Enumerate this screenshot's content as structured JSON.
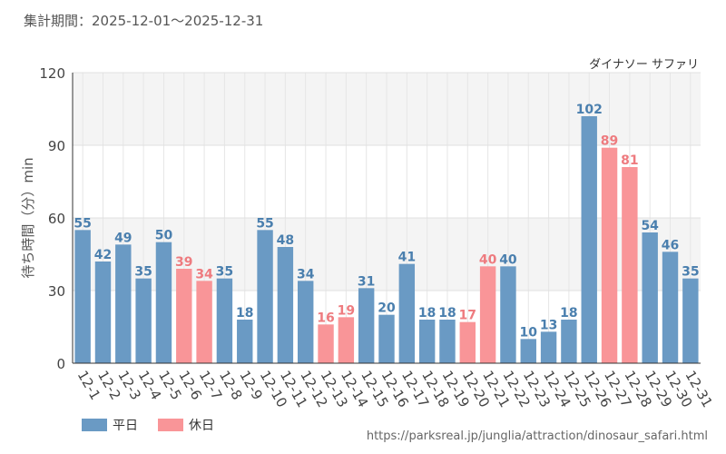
{
  "header": {
    "period": "集計期間：2025-12-01～2025-12-31"
  },
  "chart_data": {
    "type": "bar",
    "subtitle": "ダイナソー サファリ",
    "ylabel": "待ち時間（分）min",
    "ylim": [
      0,
      120
    ],
    "yticks": [
      0,
      30,
      60,
      90,
      120
    ],
    "categories": [
      "12-1",
      "12-2",
      "12-3",
      "12-4",
      "12-5",
      "12-6",
      "12-7",
      "12-8",
      "12-9",
      "12-10",
      "12-11",
      "12-12",
      "12-13",
      "12-14",
      "12-15",
      "12-16",
      "12-17",
      "12-18",
      "12-19",
      "12-20",
      "12-21",
      "12-22",
      "12-23",
      "12-24",
      "12-25",
      "12-26",
      "12-27",
      "12-28",
      "12-29",
      "12-30",
      "12-31"
    ],
    "values": [
      55,
      42,
      49,
      35,
      50,
      39,
      34,
      35,
      18,
      55,
      48,
      34,
      16,
      19,
      31,
      20,
      41,
      18,
      18,
      17,
      40,
      40,
      10,
      13,
      18,
      102,
      89,
      81,
      54,
      46,
      35
    ],
    "day_type": [
      "weekday",
      "weekday",
      "weekday",
      "weekday",
      "weekday",
      "holiday",
      "holiday",
      "weekday",
      "weekday",
      "weekday",
      "weekday",
      "weekday",
      "holiday",
      "holiday",
      "weekday",
      "weekday",
      "weekday",
      "weekday",
      "weekday",
      "holiday",
      "holiday",
      "weekday",
      "weekday",
      "weekday",
      "weekday",
      "weekday",
      "holiday",
      "holiday",
      "weekday",
      "weekday",
      "weekday"
    ],
    "legend": [
      {
        "key": "weekday",
        "label": "平日",
        "color": "#6a9ac4"
      },
      {
        "key": "holiday",
        "label": "休日",
        "color": "#f99598"
      }
    ],
    "label_colors": {
      "weekday": "#4a7fae",
      "holiday": "#ee7b7f"
    },
    "tick_colors": {
      "weekday": "#444444",
      "holiday": "#ee7b7f"
    }
  },
  "footer": {
    "source": "https://parksreal.jp/junglia/attraction/dinosaur_safari.html"
  }
}
